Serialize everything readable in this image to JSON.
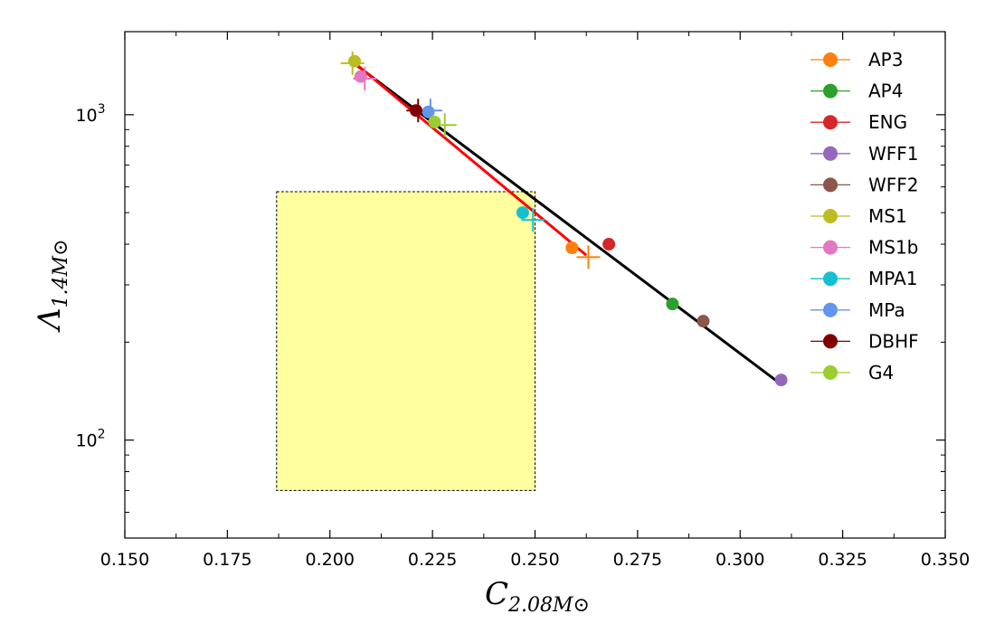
{
  "chart_data": {
    "type": "scatter",
    "title": "",
    "xlabel": {
      "main": "C",
      "sub": "2.08M",
      "sub_symbol": "⊙"
    },
    "ylabel": {
      "main": "Λ",
      "sub": "1.4M",
      "sub_symbol": "⊙"
    },
    "xscale": "linear",
    "yscale": "log",
    "xlim": [
      0.15,
      0.35
    ],
    "ylim": [
      50,
      1800
    ],
    "xticks": [
      0.15,
      0.175,
      0.2,
      0.225,
      0.25,
      0.275,
      0.3,
      0.325,
      0.35
    ],
    "xtick_labels": [
      "0.150",
      "0.175",
      "0.200",
      "0.225",
      "0.250",
      "0.275",
      "0.300",
      "0.325",
      "0.350"
    ],
    "yticks_major": [
      {
        "value": 100,
        "base": "10",
        "exp": "2"
      },
      {
        "value": 1000,
        "base": "10",
        "exp": "3"
      }
    ],
    "grid": false,
    "legend_position": "top-right",
    "shaded_region": {
      "x": [
        0.187,
        0.25
      ],
      "y": [
        70,
        580
      ],
      "color": "#ffffa0",
      "edge_color": "#000000"
    },
    "series": [
      {
        "name": "AP3",
        "color": "#ff7f0e",
        "point": [
          0.259,
          390
        ],
        "cross": [
          0.263,
          365
        ]
      },
      {
        "name": "AP4",
        "color": "#2ca02c",
        "point": [
          0.2835,
          262
        ],
        "cross": null
      },
      {
        "name": "ENG",
        "color": "#d62728",
        "point": [
          0.268,
          400
        ],
        "cross": null
      },
      {
        "name": "WFF1",
        "color": "#9467bd",
        "point": [
          0.31,
          153
        ],
        "cross": null
      },
      {
        "name": "WFF2",
        "color": "#8c564b",
        "point": [
          0.291,
          232
        ],
        "cross": null
      },
      {
        "name": "MS1",
        "color": "#bcbd22",
        "point": [
          0.206,
          1460
        ],
        "cross": [
          0.2055,
          1440
        ]
      },
      {
        "name": "MS1b",
        "color": "#e377c2",
        "point": [
          0.2075,
          1310
        ],
        "cross": [
          0.2085,
          1290
        ]
      },
      {
        "name": "MPA1",
        "color": "#17becf",
        "point": [
          0.247,
          500
        ],
        "cross": [
          0.2495,
          475
        ]
      },
      {
        "name": "MPa",
        "color": "#6495ed",
        "point": [
          0.224,
          1020
        ],
        "cross": [
          0.2245,
          1030
        ]
      },
      {
        "name": "DBHF",
        "color": "#800000",
        "point": [
          0.221,
          1030
        ],
        "cross": [
          0.2215,
          1030
        ]
      },
      {
        "name": "G4",
        "color": "#9acd32",
        "point": [
          0.2255,
          950
        ],
        "cross": [
          0.228,
          930
        ]
      }
    ],
    "fit_lines": [
      {
        "color": "#000000",
        "x": [
          0.2055,
          0.3095
        ],
        "y": [
          1450,
          150
        ]
      },
      {
        "color": "#ff0000",
        "x": [
          0.2055,
          0.2625
        ],
        "y": [
          1460,
          370
        ]
      }
    ]
  }
}
